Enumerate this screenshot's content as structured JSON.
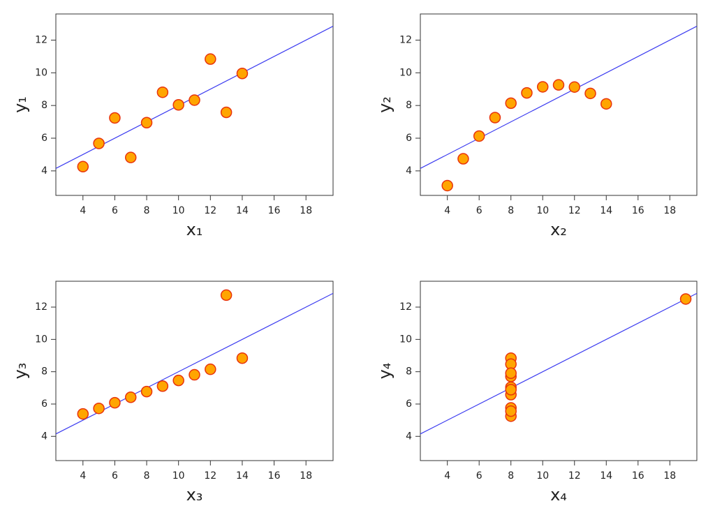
{
  "chart_data": [
    {
      "type": "scatter",
      "xlabel": "x₁",
      "ylabel": "y₁",
      "x": [
        10,
        8,
        13,
        9,
        11,
        14,
        6,
        4,
        12,
        7,
        5
      ],
      "values": [
        8.04,
        6.95,
        7.58,
        8.81,
        8.33,
        9.96,
        7.24,
        4.26,
        10.84,
        4.82,
        5.68
      ],
      "color": "#ffa500",
      "edge_color": "#e8340c",
      "fit": {
        "intercept": 3,
        "slope": 0.5,
        "color": "#3b3bf0"
      },
      "xlim": [
        2.3,
        19.7
      ],
      "ylim": [
        2.5,
        13.6
      ],
      "xticks": [
        4,
        6,
        8,
        10,
        12,
        14,
        16,
        18
      ],
      "yticks": [
        4,
        6,
        8,
        10,
        12
      ]
    },
    {
      "type": "scatter",
      "xlabel": "x₂",
      "ylabel": "y₂",
      "x": [
        10,
        8,
        13,
        9,
        11,
        14,
        6,
        4,
        12,
        7,
        5
      ],
      "values": [
        9.14,
        8.14,
        8.74,
        8.77,
        9.26,
        8.1,
        6.13,
        3.1,
        9.13,
        7.26,
        4.74
      ],
      "color": "#ffa500",
      "edge_color": "#e8340c",
      "fit": {
        "intercept": 3,
        "slope": 0.5,
        "color": "#3b3bf0"
      },
      "xlim": [
        2.3,
        19.7
      ],
      "ylim": [
        2.5,
        13.6
      ],
      "xticks": [
        4,
        6,
        8,
        10,
        12,
        14,
        16,
        18
      ],
      "yticks": [
        4,
        6,
        8,
        10,
        12
      ]
    },
    {
      "type": "scatter",
      "xlabel": "x₃",
      "ylabel": "y₃",
      "x": [
        10,
        8,
        13,
        9,
        11,
        14,
        6,
        4,
        12,
        7,
        5
      ],
      "values": [
        7.46,
        6.77,
        12.74,
        7.11,
        7.81,
        8.84,
        6.08,
        5.39,
        8.15,
        6.42,
        5.73
      ],
      "color": "#ffa500",
      "edge_color": "#e8340c",
      "fit": {
        "intercept": 3,
        "slope": 0.5,
        "color": "#3b3bf0"
      },
      "xlim": [
        2.3,
        19.7
      ],
      "ylim": [
        2.5,
        13.6
      ],
      "xticks": [
        4,
        6,
        8,
        10,
        12,
        14,
        16,
        18
      ],
      "yticks": [
        4,
        6,
        8,
        10,
        12
      ]
    },
    {
      "type": "scatter",
      "xlabel": "x₄",
      "ylabel": "y₄",
      "x": [
        8,
        8,
        8,
        8,
        8,
        8,
        8,
        19,
        8,
        8,
        8
      ],
      "values": [
        6.58,
        5.76,
        7.71,
        8.84,
        8.47,
        7.04,
        5.25,
        12.5,
        5.56,
        7.91,
        6.89
      ],
      "color": "#ffa500",
      "edge_color": "#e8340c",
      "fit": {
        "intercept": 3,
        "slope": 0.5,
        "color": "#3b3bf0"
      },
      "xlim": [
        2.3,
        19.7
      ],
      "ylim": [
        2.5,
        13.6
      ],
      "xticks": [
        4,
        6,
        8,
        10,
        12,
        14,
        16,
        18
      ],
      "yticks": [
        4,
        6,
        8,
        10,
        12
      ]
    }
  ]
}
